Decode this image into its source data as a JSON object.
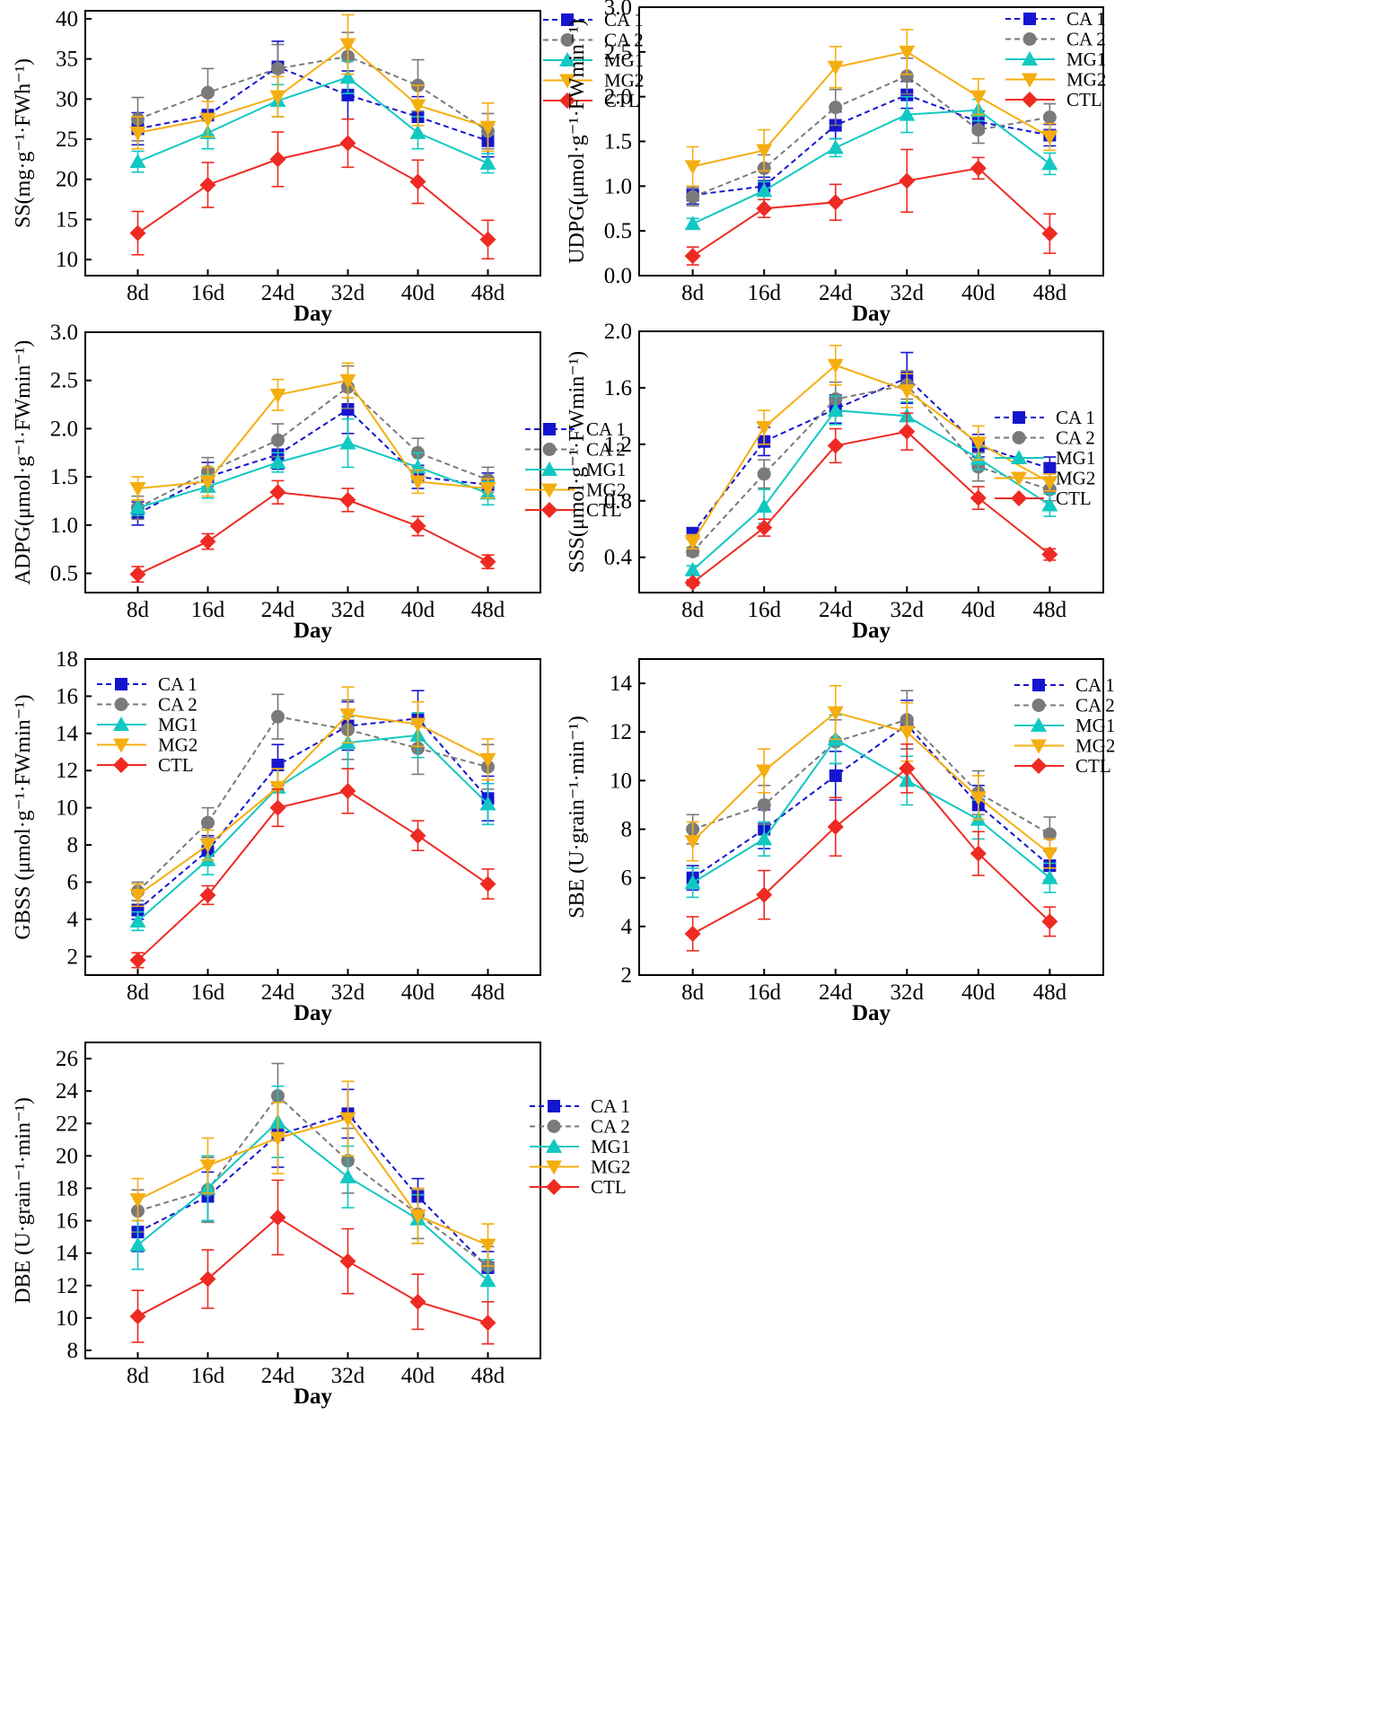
{
  "figure": {
    "xlabel": "Day",
    "categories": [
      "8d",
      "16d",
      "24d",
      "32d",
      "40d",
      "48d"
    ],
    "series_styles": [
      {
        "name": "CA 1",
        "color": "#1515d0",
        "marker": "square",
        "dash": "dashed"
      },
      {
        "name": "CA 2",
        "color": "#7a7a7a",
        "marker": "circle",
        "dash": "dashed"
      },
      {
        "name": "MG1",
        "color": "#12c8c2",
        "marker": "triangle-up",
        "dash": "solid"
      },
      {
        "name": "MG2",
        "color": "#f5ae10",
        "marker": "triangle-down",
        "dash": "solid"
      },
      {
        "name": "CTL",
        "color": "#ee2a22",
        "marker": "diamond",
        "dash": "solid"
      }
    ]
  },
  "chart_data": [
    {
      "type": "line",
      "title": "",
      "xlabel": "Day",
      "ylabel": "SS(mg·g⁻¹·FWh⁻¹)",
      "ylim": [
        8,
        41
      ],
      "yticks": [
        "10",
        "15",
        "20",
        "25",
        "30",
        "35",
        "40"
      ],
      "categories": [
        "8d",
        "16d",
        "24d",
        "32d",
        "40d",
        "48d"
      ],
      "legend": "top-right",
      "series": [
        {
          "name": "CA 1",
          "values": [
            26.3,
            28,
            34,
            30.5,
            27.8,
            24.8
          ],
          "errors": [
            2,
            2.5,
            3.2,
            3,
            2.5,
            2
          ]
        },
        {
          "name": "CA 2",
          "values": [
            27.5,
            30.8,
            33.8,
            35.3,
            31.7,
            26
          ],
          "errors": [
            2.7,
            3,
            3,
            3,
            3.2,
            2.2
          ]
        },
        {
          "name": "MG1",
          "values": [
            22.2,
            25.8,
            29.8,
            32.7,
            25.8,
            22
          ],
          "errors": [
            1.3,
            2,
            2,
            2,
            2,
            1.2
          ]
        },
        {
          "name": "MG2",
          "values": [
            25.8,
            27.5,
            30.3,
            36.8,
            29.2,
            26.5
          ],
          "errors": [
            2,
            2.2,
            2.5,
            3.7,
            2.5,
            3
          ]
        },
        {
          "name": "CTL",
          "values": [
            13.3,
            19.3,
            22.5,
            24.5,
            19.7,
            12.5
          ],
          "errors": [
            2.7,
            2.8,
            3.4,
            3,
            2.7,
            2.4
          ]
        }
      ]
    },
    {
      "type": "line",
      "title": "",
      "xlabel": "Day",
      "ylabel": "UDPG(μmol·g⁻¹·FWmin⁻¹)",
      "ylim": [
        0,
        3
      ],
      "yticks": [
        "0.0",
        "0.5",
        "1.0",
        "1.5",
        "2.0",
        "2.5",
        "3.0"
      ],
      "categories": [
        "8d",
        "16d",
        "24d",
        "32d",
        "40d",
        "48d"
      ],
      "legend": "top-right",
      "series": [
        {
          "name": "CA 1",
          "values": [
            0.9,
            1.0,
            1.68,
            2.02,
            1.72,
            1.57
          ],
          "errors": [
            0.1,
            0.1,
            0.15,
            0.15,
            0.12,
            0.12
          ]
        },
        {
          "name": "CA 2",
          "values": [
            0.88,
            1.2,
            1.88,
            2.23,
            1.63,
            1.77
          ],
          "errors": [
            0.1,
            0.15,
            0.2,
            0.2,
            0.15,
            0.15
          ]
        },
        {
          "name": "MG1",
          "values": [
            0.58,
            0.95,
            1.43,
            1.8,
            1.85,
            1.25
          ],
          "errors": [
            0.06,
            0.1,
            0.1,
            0.2,
            0.12,
            0.12
          ]
        },
        {
          "name": "MG2",
          "values": [
            1.22,
            1.4,
            2.33,
            2.5,
            2.0,
            1.55
          ],
          "errors": [
            0.22,
            0.23,
            0.23,
            0.25,
            0.2,
            0.15
          ]
        },
        {
          "name": "CTL",
          "values": [
            0.22,
            0.75,
            0.82,
            1.06,
            1.2,
            0.47
          ],
          "errors": [
            0.1,
            0.1,
            0.2,
            0.35,
            0.12,
            0.22
          ]
        }
      ]
    },
    {
      "type": "line",
      "title": "",
      "xlabel": "Day",
      "ylabel": "ADPG(μmol·g⁻¹·FWmin⁻¹)",
      "ylim": [
        0.3,
        3
      ],
      "yticks": [
        "0.5",
        "1.0",
        "1.5",
        "2.0",
        "2.5",
        "3.0"
      ],
      "categories": [
        "8d",
        "16d",
        "24d",
        "32d",
        "40d",
        "48d"
      ],
      "legend": "top-right",
      "series": [
        {
          "name": "CA 1",
          "values": [
            1.12,
            1.5,
            1.73,
            2.2,
            1.5,
            1.42
          ],
          "errors": [
            0.12,
            0.15,
            0.15,
            0.25,
            0.12,
            0.12
          ]
        },
        {
          "name": "CA 2",
          "values": [
            1.18,
            1.55,
            1.88,
            2.43,
            1.75,
            1.47
          ],
          "errors": [
            0.12,
            0.15,
            0.17,
            0.22,
            0.15,
            0.13
          ]
        },
        {
          "name": "MG1",
          "values": [
            1.18,
            1.4,
            1.65,
            1.85,
            1.6,
            1.33
          ],
          "errors": [
            0.08,
            0.12,
            0.1,
            0.25,
            0.15,
            0.12
          ]
        },
        {
          "name": "MG2",
          "values": [
            1.38,
            1.45,
            2.35,
            2.5,
            1.45,
            1.38
          ],
          "errors": [
            0.12,
            0.15,
            0.16,
            0.18,
            0.12,
            0.1
          ]
        },
        {
          "name": "CTL",
          "values": [
            0.49,
            0.83,
            1.34,
            1.26,
            0.99,
            0.62
          ],
          "errors": [
            0.08,
            0.08,
            0.12,
            0.12,
            0.1,
            0.07
          ]
        }
      ]
    },
    {
      "type": "line",
      "title": "",
      "xlabel": "Day",
      "ylabel": "SSS(μmol·g⁻¹·FWmin⁻¹)",
      "ylim": [
        0.15,
        2.0
      ],
      "yticks": [
        "0.4",
        "0.8",
        "1.2",
        "1.6",
        "2.0"
      ],
      "categories": [
        "8d",
        "16d",
        "24d",
        "32d",
        "40d",
        "48d"
      ],
      "legend": "top-right",
      "series": [
        {
          "name": "CA 1",
          "values": [
            0.57,
            1.22,
            1.45,
            1.67,
            1.19,
            1.03
          ],
          "errors": [
            0.04,
            0.1,
            0.1,
            0.18,
            0.08,
            0.08
          ]
        },
        {
          "name": "CA 2",
          "values": [
            0.44,
            0.99,
            1.52,
            1.62,
            1.04,
            0.88
          ],
          "errors": [
            0.03,
            0.1,
            0.12,
            0.1,
            0.1,
            0.08
          ]
        },
        {
          "name": "MG1",
          "values": [
            0.31,
            0.76,
            1.44,
            1.4,
            1.1,
            0.77
          ],
          "errors": [
            0.03,
            0.12,
            0.1,
            0.1,
            0.08,
            0.08
          ]
        },
        {
          "name": "MG2",
          "values": [
            0.51,
            1.32,
            1.76,
            1.58,
            1.21,
            0.93
          ],
          "errors": [
            0.05,
            0.12,
            0.14,
            0.12,
            0.12,
            0.06
          ]
        },
        {
          "name": "CTL",
          "values": [
            0.22,
            0.61,
            1.19,
            1.29,
            0.82,
            0.42
          ],
          "errors": [
            0.02,
            0.06,
            0.12,
            0.13,
            0.08,
            0.04
          ]
        }
      ]
    },
    {
      "type": "line",
      "title": "",
      "xlabel": "Day",
      "ylabel": "GBSS (μmol·g⁻¹·FWmin⁻¹)",
      "ylim": [
        1,
        18
      ],
      "yticks": [
        "2",
        "4",
        "6",
        "8",
        "10",
        "12",
        "14",
        "16",
        "18"
      ],
      "categories": [
        "8d",
        "16d",
        "24d",
        "32d",
        "40d",
        "48d"
      ],
      "legend": "top-left",
      "series": [
        {
          "name": "CA 1",
          "values": [
            4.5,
            7.7,
            12.3,
            14.4,
            14.8,
            10.5
          ],
          "errors": [
            0.5,
            0.8,
            1.1,
            1.3,
            1.5,
            1.2
          ]
        },
        {
          "name": "CA 2",
          "values": [
            5.5,
            9.2,
            14.9,
            14.2,
            13.2,
            12.2
          ],
          "errors": [
            0.5,
            0.8,
            1.2,
            1.6,
            1.4,
            1.2
          ]
        },
        {
          "name": "MG1",
          "values": [
            3.9,
            7.2,
            11.1,
            13.5,
            13.9,
            10.2
          ],
          "errors": [
            0.5,
            0.8,
            1.0,
            1.4,
            1.2,
            1.1
          ]
        },
        {
          "name": "MG2",
          "values": [
            5.3,
            8.0,
            11.1,
            15.0,
            14.5,
            12.6
          ],
          "errors": [
            0.6,
            0.8,
            1.0,
            1.5,
            1.2,
            1.1
          ]
        },
        {
          "name": "CTL",
          "values": [
            1.8,
            5.3,
            10.0,
            10.9,
            8.5,
            5.9
          ],
          "errors": [
            0.4,
            0.5,
            1.0,
            1.2,
            0.8,
            0.8
          ]
        }
      ]
    },
    {
      "type": "line",
      "title": "",
      "xlabel": "Day",
      "ylabel": "SBE (U·grain⁻¹·min⁻¹)",
      "ylim": [
        2,
        15
      ],
      "yticks": [
        "2",
        "4",
        "6",
        "8",
        "10",
        "12",
        "14"
      ],
      "categories": [
        "8d",
        "16d",
        "24d",
        "32d",
        "40d",
        "48d"
      ],
      "legend": "top-right",
      "series": [
        {
          "name": "CA 1",
          "values": [
            6.0,
            8.0,
            10.2,
            12.3,
            9.0,
            6.5
          ],
          "errors": [
            0.5,
            0.8,
            1.0,
            1.0,
            0.8,
            0.6
          ]
        },
        {
          "name": "CA 2",
          "values": [
            8.0,
            9.0,
            11.6,
            12.5,
            9.5,
            7.8
          ],
          "errors": [
            0.6,
            0.8,
            0.9,
            1.2,
            0.9,
            0.7
          ]
        },
        {
          "name": "MG1",
          "values": [
            5.8,
            7.6,
            11.7,
            10.0,
            8.4,
            6.0
          ],
          "errors": [
            0.6,
            0.7,
            1.0,
            1.0,
            0.8,
            0.6
          ]
        },
        {
          "name": "MG2",
          "values": [
            7.5,
            10.4,
            12.8,
            12.0,
            9.3,
            7.0
          ],
          "errors": [
            0.8,
            0.9,
            1.1,
            1.2,
            0.9,
            0.6
          ]
        },
        {
          "name": "CTL",
          "values": [
            3.7,
            5.3,
            8.1,
            10.5,
            7.0,
            4.2
          ],
          "errors": [
            0.7,
            1.0,
            1.2,
            1.0,
            0.9,
            0.6
          ]
        }
      ]
    },
    {
      "type": "line",
      "title": "",
      "xlabel": "Day",
      "ylabel": "DBE (U·grain⁻¹·min⁻¹)",
      "ylim": [
        7.5,
        27
      ],
      "yticks": [
        "8",
        "10",
        "12",
        "14",
        "16",
        "18",
        "20",
        "22",
        "24",
        "26"
      ],
      "categories": [
        "8d",
        "16d",
        "24d",
        "32d",
        "40d",
        "48d"
      ],
      "legend": "top-right",
      "series": [
        {
          "name": "CA 1",
          "values": [
            15.3,
            17.5,
            21.3,
            22.6,
            17.5,
            13.1
          ],
          "errors": [
            1.2,
            1.5,
            2.0,
            1.5,
            1.1,
            1.0
          ]
        },
        {
          "name": "CA 2",
          "values": [
            16.6,
            17.9,
            23.7,
            19.7,
            16.4,
            13.2
          ],
          "errors": [
            1.3,
            2.0,
            2.0,
            2.0,
            1.5,
            1.2
          ]
        },
        {
          "name": "MG1",
          "values": [
            14.5,
            18.0,
            22.1,
            18.7,
            16.1,
            12.3
          ],
          "errors": [
            1.5,
            2.0,
            2.2,
            1.9,
            1.5,
            1.3
          ]
        },
        {
          "name": "MG2",
          "values": [
            17.3,
            19.4,
            21.1,
            22.3,
            16.3,
            14.5
          ],
          "errors": [
            1.3,
            1.7,
            2.2,
            2.3,
            1.7,
            1.3
          ]
        },
        {
          "name": "CTL",
          "values": [
            10.1,
            12.4,
            16.2,
            13.5,
            11.0,
            9.7
          ],
          "errors": [
            1.6,
            1.8,
            2.3,
            2.0,
            1.7,
            1.3
          ]
        }
      ]
    }
  ]
}
